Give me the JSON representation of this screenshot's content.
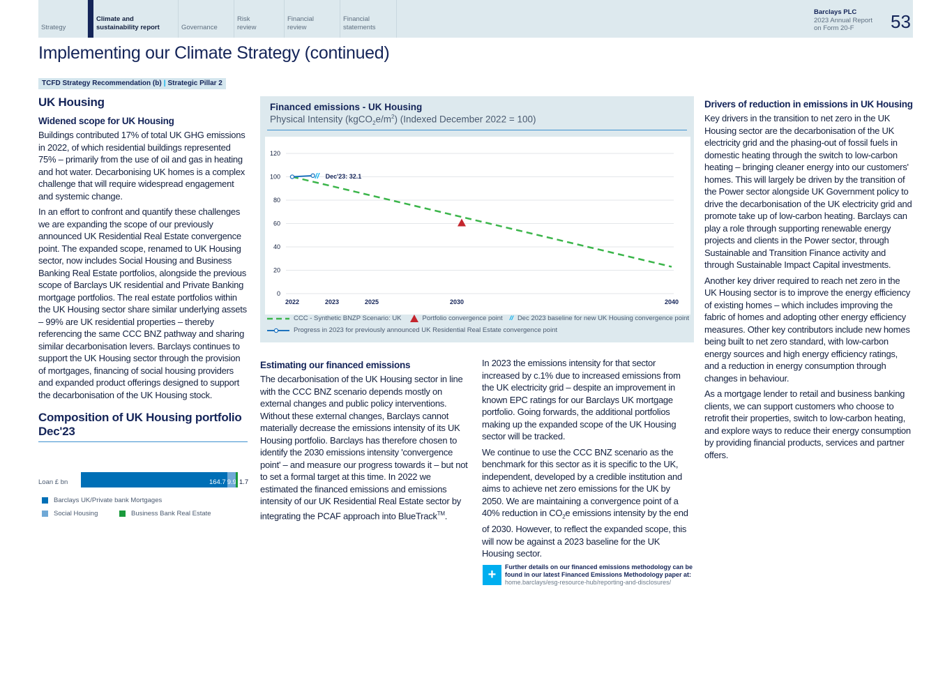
{
  "header": {
    "nav": [
      {
        "label": "Strategy"
      },
      {
        "label": "Climate and sustainability report",
        "active": true
      },
      {
        "label": "Governance"
      },
      {
        "label": "Risk review"
      },
      {
        "label": "Financial review"
      },
      {
        "label": "Financial statements"
      }
    ],
    "company": "Barclays PLC",
    "report_line1": "2023 Annual Report",
    "report_line2": "on Form 20-F",
    "page_number": "53"
  },
  "title": "Implementing our Climate Strategy (continued)",
  "tag": {
    "left": "TCFD Strategy Recommendation (b)",
    "sep": "|",
    "right": "Strategic Pillar 2"
  },
  "left": {
    "heading": "UK Housing",
    "subheading": "Widened scope for UK Housing",
    "p1": "Buildings contributed 17% of total UK GHG emissions in 2022, of which residential buildings represented 75% – primarily from the use of oil and gas in heating and hot water. Decarbonising UK homes is a complex challenge that will require widespread engagement and systemic change.",
    "p2": "In an effort to confront and quantify these challenges we are expanding the scope of our previously announced UK Residential Real Estate convergence point. The expanded scope, renamed to UK Housing sector, now includes Social Housing and Business Banking Real Estate portfolios, alongside the previous scope of Barclays UK residential and Private Banking mortgage portfolios. The real estate portfolios within the UK Housing sector share similar underlying assets – 99% are UK residential properties – thereby referencing the same CCC BNZ pathway and sharing similar decarbonisation levers. Barclays continues to support the UK Housing sector through the provision of mortgages, financing of social housing providers and expanded product offerings designed to support the decarbonisation of the UK Housing stock.",
    "composition_heading": "Composition of UK Housing portfolio Dec'23"
  },
  "composition": {
    "row_label": "Loan £ bn",
    "segments": [
      {
        "name": "Barclays UK/Private bank Mortgages",
        "value": 164.7,
        "label": "164.7",
        "color": "#006fb6"
      },
      {
        "name": "Social Housing",
        "value": 9.9,
        "label": "9.9",
        "color": "#6fa8d6"
      },
      {
        "name": "Business Bank Real Estate",
        "value": 1.7,
        "label": "1.7",
        "color": "#1a9a3c"
      }
    ]
  },
  "chart_data": {
    "type": "line",
    "title": "Financed emissions - UK Housing",
    "subtitle_pre": "Physical Intensity (kgCO",
    "subtitle_sub": "2",
    "subtitle_mid": "e/m",
    "subtitle_sup": "2",
    "subtitle_post": ") (Indexed December 2022 = 100)",
    "x_ticks": [
      "2022",
      "2023",
      "2025",
      "2030",
      "2040"
    ],
    "y_ticks": [
      0,
      20,
      40,
      60,
      80,
      100,
      120
    ],
    "ylim": [
      0,
      120
    ],
    "grid": true,
    "legend_position": "bottom",
    "series": [
      {
        "name": "CCC - Synthetic BNZP Scenario: UK",
        "style": "dashed",
        "color": "#3bb54a",
        "x": [
          2022,
          2040
        ],
        "values": [
          100,
          23
        ]
      },
      {
        "name": "Progress in 2023 for previously announced UK Residential Real Estate convergence point",
        "color": "#1e73be",
        "x": [
          2022,
          2023
        ],
        "values": [
          100,
          101
        ]
      }
    ],
    "points": [
      {
        "name": "Portfolio convergence point",
        "x": 2030,
        "value": 60,
        "color": "#c4262e",
        "marker": "triangle"
      }
    ],
    "break_marker": {
      "name": "Dec 2023 baseline for new UK Housing convergence point",
      "symbol": "//",
      "color": "#00aeef"
    },
    "annotation": "Dec'23: 32.1"
  },
  "mid": {
    "heading": "Estimating our financed emissions",
    "p1": "The decarbonisation of the UK Housing sector in line with the CCC BNZ scenario depends mostly on external changes and public policy interventions. Without these external changes, Barclays cannot materially decrease the emissions intensity of its UK Housing portfolio. Barclays has therefore chosen to identify the 2030 emissions intensity 'convergence point' – and measure our progress towards it – but not to set a formal target at this  time. In 2022 we estimated the financed emissions and emissions intensity of our UK Residential Real Estate sector by integrating the PCAF approach into  BlueTrack",
    "tm": "TM",
    "p2": "In 2023 the emissions intensity for that sector increased by c.1% due to increased emissions from the UK electricity grid – despite an improvement in known EPC ratings for our Barclays UK mortgage portfolio. Going forwards, the additional portfolios making up the expanded scope of the UK Housing sector will be tracked.",
    "p3a": "We continue to use the CCC BNZ scenario as the benchmark for this sector as it is specific to the UK, independent, developed by a credible institution and aims to achieve net zero emissions for the UK by 2050. We are maintaining a convergence point of a 40% reduction in CO",
    "p3sub": "2",
    "p3b": "e emissions intensity by the end of 2030. However, to reflect the expanded scope, this will now be against a 2023 baseline for the UK Housing sector.",
    "note_bold": "Further details on our financed emissions  methodology can be found in our latest Financed Emissions Methodology paper at:",
    "note_url": "home.barclays/esg-resource-hub/reporting-and-disclosures/",
    "plus": "+"
  },
  "right": {
    "heading": "Drivers of reduction in emissions in UK Housing",
    "p1": "Key drivers in the transition to net zero in the UK Housing sector are the decarbonisation of the UK electricity grid and the phasing-out of fossil fuels in domestic heating through the switch to low-carbon heating – bringing cleaner energy into our customers' homes. This will largely be driven by the transition of the Power sector alongside UK Government policy to drive the decarbonisation of the UK electricity grid and promote take up of low-carbon heating. Barclays can play a role through supporting renewable energy projects and clients in the Power sector, through Sustainable and Transition Finance activity and through Sustainable Impact Capital investments.",
    "p2": "Another key driver required to reach net zero in the UK Housing sector is to improve the energy efficiency of existing homes – which includes improving the fabric of homes and adopting other energy efficiency measures. Other key contributors include new homes being built to net zero standard, with low-carbon energy sources and high energy efficiency ratings, and a reduction in energy consumption through changes in behaviour.",
    "p3": "As a mortgage lender to retail and business banking clients, we can support  customers who choose to retrofit their properties, switch to low-carbon heating, and explore ways to reduce their energy consumption by providing financial products, services and partner offers."
  }
}
